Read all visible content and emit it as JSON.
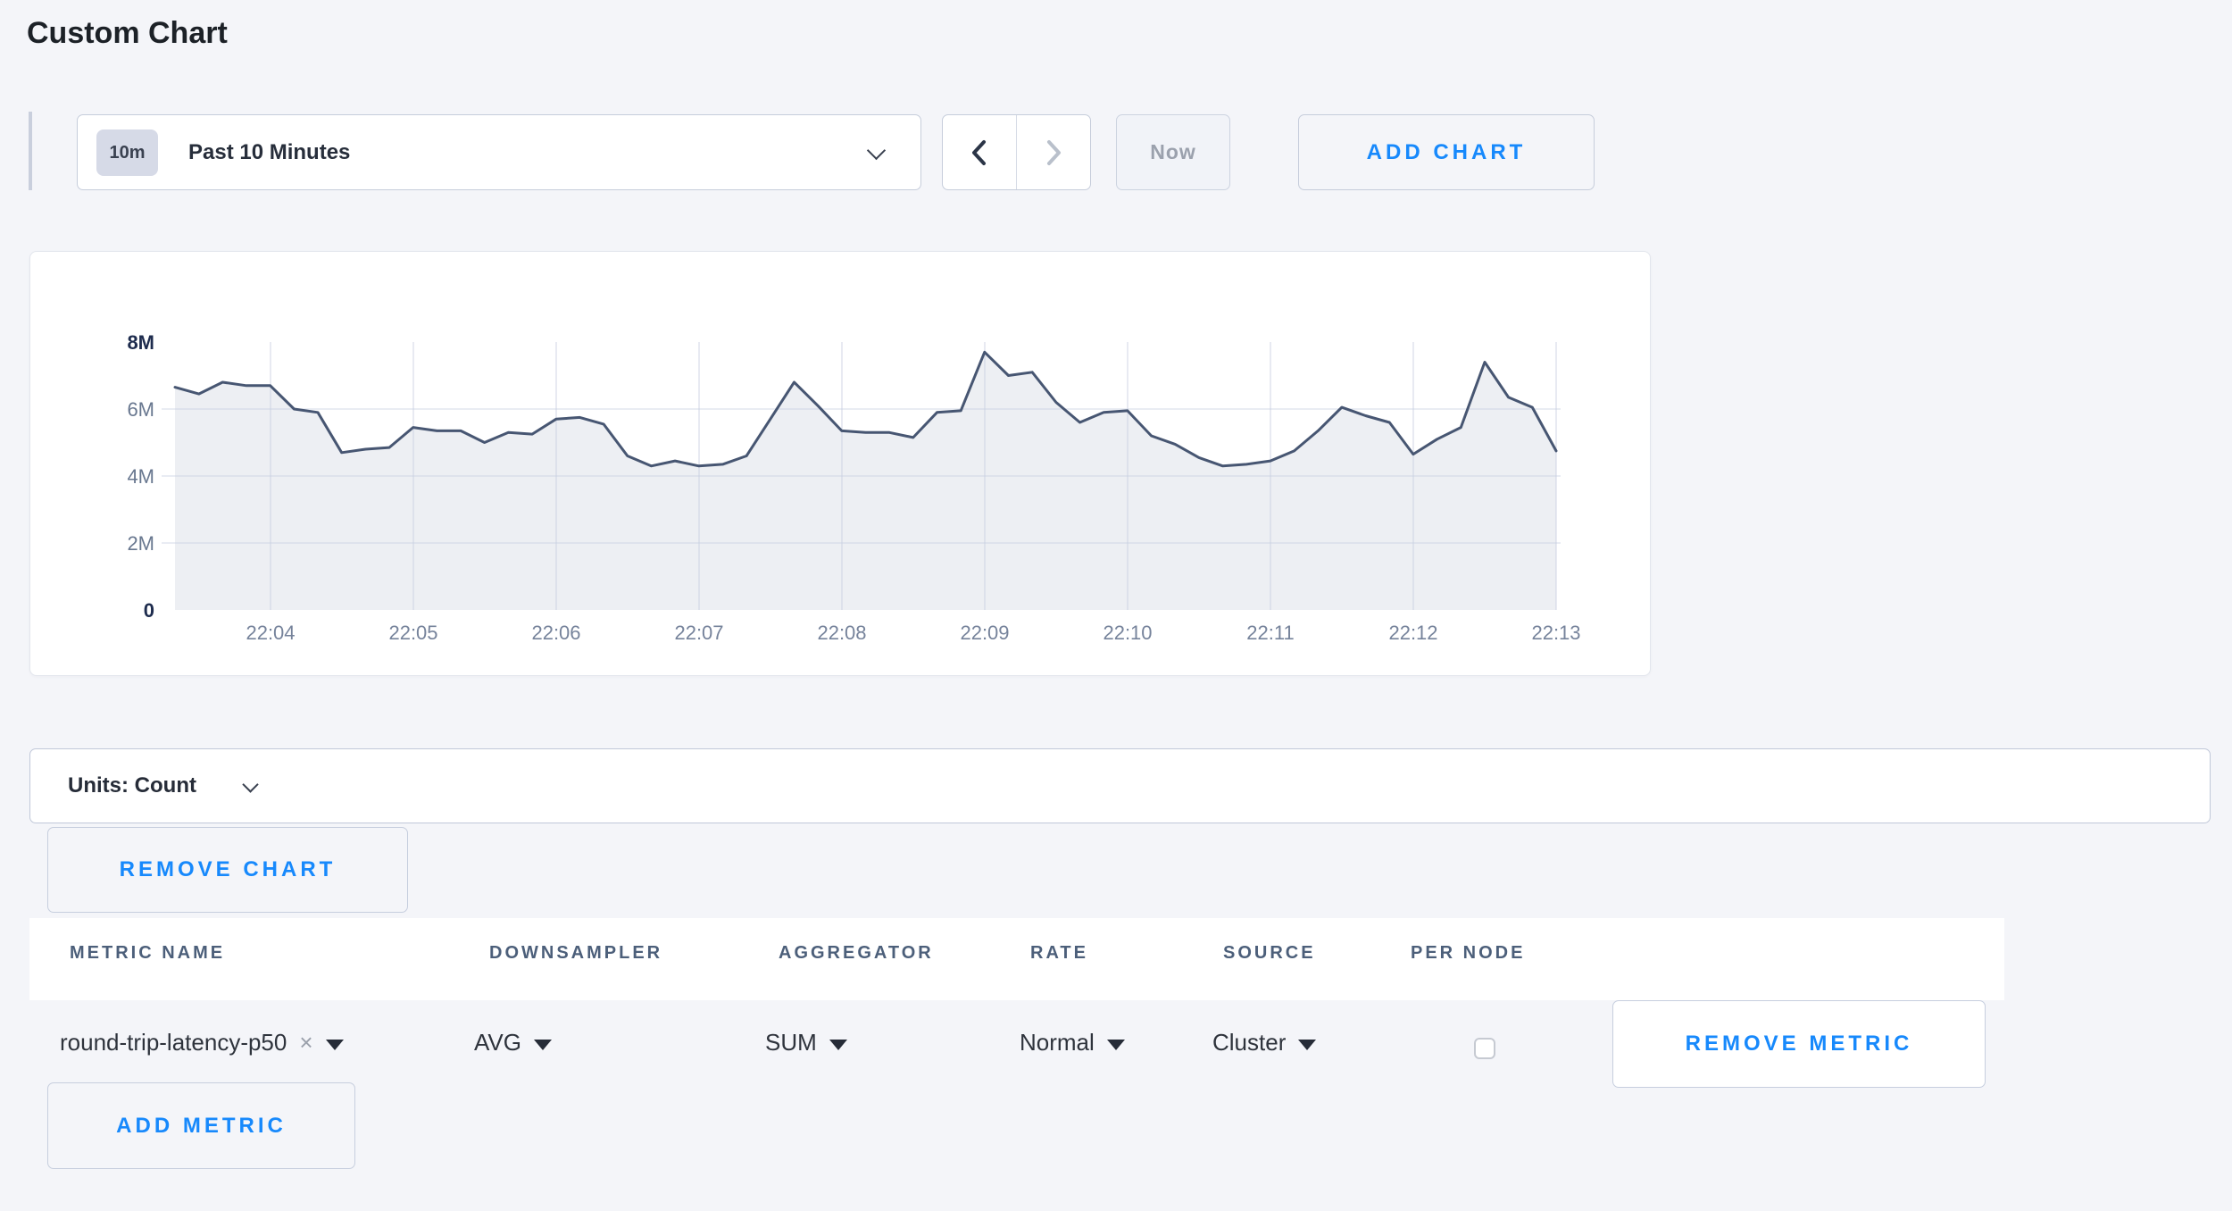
{
  "page_title": "Custom Chart",
  "toolbar": {
    "time_badge": "10m",
    "time_label": "Past 10 Minutes",
    "prev_icon": "chevron-left",
    "next_icon": "chevron-right",
    "now_label": "Now",
    "add_chart_label": "ADD CHART"
  },
  "chart_data": {
    "type": "area",
    "title": "",
    "x_start": "22:03:20",
    "x_step_seconds": 10,
    "values_millions": [
      6.65,
      6.45,
      6.8,
      6.7,
      6.7,
      6.0,
      5.9,
      4.7,
      4.8,
      4.85,
      5.45,
      5.35,
      5.35,
      5.0,
      5.3,
      5.25,
      5.7,
      5.75,
      5.55,
      4.6,
      4.3,
      4.45,
      4.3,
      4.35,
      4.6,
      5.7,
      6.8,
      6.1,
      5.35,
      5.3,
      5.3,
      5.15,
      5.9,
      5.95,
      7.7,
      7.0,
      7.1,
      6.2,
      5.6,
      5.9,
      5.95,
      5.2,
      4.95,
      4.55,
      4.3,
      4.35,
      4.45,
      4.75,
      5.35,
      6.05,
      5.8,
      5.6,
      4.65,
      5.1,
      5.45,
      7.4,
      6.35,
      6.05,
      4.75
    ],
    "x_tick_labels": [
      "22:04",
      "22:05",
      "22:06",
      "22:07",
      "22:08",
      "22:09",
      "22:10",
      "22:11",
      "22:12",
      "22:13"
    ],
    "y_tick_labels": [
      "0",
      "2M",
      "4M",
      "6M",
      "8M"
    ],
    "ylim_millions": [
      0,
      8
    ],
    "grid": true,
    "legend": "none",
    "line_color": "#475672",
    "fill_color": "#edeff3"
  },
  "units_bar": {
    "label": "Units: Count"
  },
  "chart_actions": {
    "remove_chart_label": "REMOVE CHART"
  },
  "metrics_table": {
    "headers": [
      "METRIC NAME",
      "DOWNSAMPLER",
      "AGGREGATOR",
      "RATE",
      "SOURCE",
      "PER NODE"
    ],
    "row": {
      "metric_name": "round-trip-latency-p50",
      "clear_icon": "×",
      "downsampler": "AVG",
      "aggregator": "SUM",
      "rate": "Normal",
      "source": "Cluster",
      "per_node_checked": false,
      "remove_metric_label": "REMOVE METRIC"
    },
    "add_metric_label": "ADD METRIC"
  },
  "colors": {
    "accent_blue": "#1789fc",
    "page_background": "#f4f5f9",
    "line": "#475672",
    "fill": "#edeff3",
    "tick_text": "#76839b",
    "tick_text_bold": "#1e2c4e"
  }
}
